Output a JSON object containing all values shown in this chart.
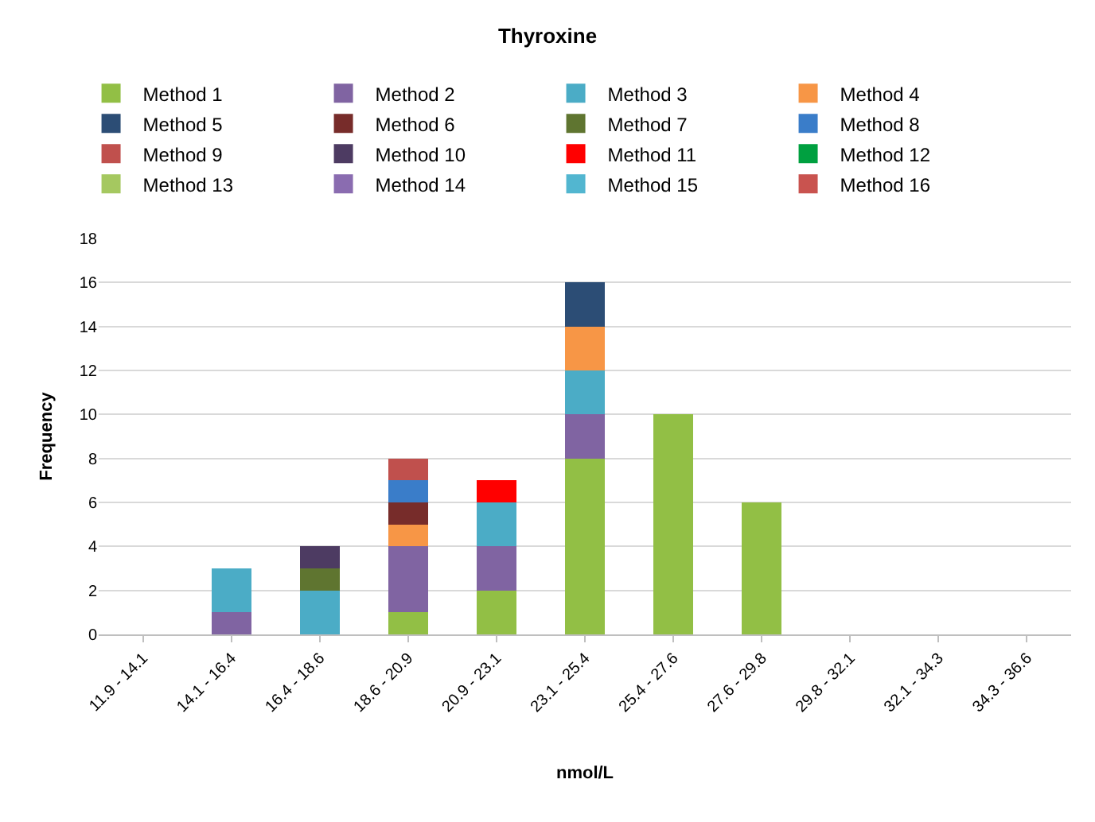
{
  "chart_data": {
    "type": "bar",
    "title": "Thyroxine",
    "xlabel": "nmol/L",
    "ylabel": "Frequency",
    "categories": [
      "11.9 - 14.1",
      "14.1 - 16.4",
      "16.4 - 18.6",
      "18.6 - 20.9",
      "20.9 - 23.1",
      "23.1 - 25.4",
      "25.4 - 27.6",
      "27.6 - 29.8",
      "29.8 - 32.1",
      "32.1 - 34.3",
      "34.3 - 36.6"
    ],
    "stacked": true,
    "ylim": [
      0,
      18
    ],
    "yticks": [
      0,
      2,
      4,
      6,
      8,
      10,
      12,
      14,
      16,
      18
    ],
    "grid": "y",
    "legend": "top",
    "series": [
      {
        "name": "Method 1",
        "color": "#92bf45",
        "values": [
          0,
          0,
          0,
          1,
          2,
          8,
          10,
          6,
          0,
          0,
          0
        ]
      },
      {
        "name": "Method 2",
        "color": "#8064a2",
        "values": [
          0,
          1,
          0,
          3,
          2,
          2,
          0,
          0,
          0,
          0,
          0
        ]
      },
      {
        "name": "Method 3",
        "color": "#4bacc6",
        "values": [
          0,
          2,
          2,
          0,
          2,
          2,
          0,
          0,
          0,
          0,
          0
        ]
      },
      {
        "name": "Method 4",
        "color": "#f79646",
        "values": [
          0,
          0,
          0,
          1,
          0,
          2,
          0,
          0,
          0,
          0,
          0
        ]
      },
      {
        "name": "Method 5",
        "color": "#2c4d75",
        "values": [
          0,
          0,
          0,
          0,
          0,
          2,
          0,
          0,
          0,
          0,
          0
        ]
      },
      {
        "name": "Method 6",
        "color": "#772c2a",
        "values": [
          0,
          0,
          0,
          1,
          0,
          0,
          0,
          0,
          0,
          0,
          0
        ]
      },
      {
        "name": "Method 7",
        "color": "#5f7530",
        "values": [
          0,
          0,
          1,
          0,
          0,
          0,
          0,
          0,
          0,
          0,
          0
        ]
      },
      {
        "name": "Method 8",
        "color": "#3a7dc9",
        "values": [
          0,
          0,
          0,
          1,
          0,
          0,
          0,
          0,
          0,
          0,
          0
        ]
      },
      {
        "name": "Method 9",
        "color": "#c0504d",
        "values": [
          0,
          0,
          0,
          1,
          0,
          0,
          0,
          0,
          0,
          0,
          0
        ]
      },
      {
        "name": "Method 10",
        "color": "#4d3b62",
        "values": [
          0,
          0,
          1,
          0,
          0,
          0,
          0,
          0,
          0,
          0,
          0
        ]
      },
      {
        "name": "Method 11",
        "color": "#ff0000",
        "values": [
          0,
          0,
          0,
          0,
          1,
          0,
          0,
          0,
          0,
          0,
          0
        ]
      },
      {
        "name": "Method 12",
        "color": "#00a040",
        "values": [
          0,
          0,
          0,
          0,
          0,
          0,
          0,
          0,
          0,
          0,
          0
        ]
      },
      {
        "name": "Method 13",
        "color": "#a5c860",
        "values": [
          0,
          0,
          0,
          0,
          0,
          0,
          0,
          0,
          0,
          0,
          0
        ]
      },
      {
        "name": "Method 14",
        "color": "#8a6cb0",
        "values": [
          0,
          0,
          0,
          0,
          0,
          0,
          0,
          0,
          0,
          0,
          0
        ]
      },
      {
        "name": "Method 15",
        "color": "#52b6d0",
        "values": [
          0,
          0,
          0,
          0,
          0,
          0,
          0,
          0,
          0,
          0,
          0
        ]
      },
      {
        "name": "Method 16",
        "color": "#c9534f",
        "values": [
          0,
          0,
          0,
          0,
          0,
          0,
          0,
          0,
          0,
          0,
          0
        ]
      }
    ]
  }
}
